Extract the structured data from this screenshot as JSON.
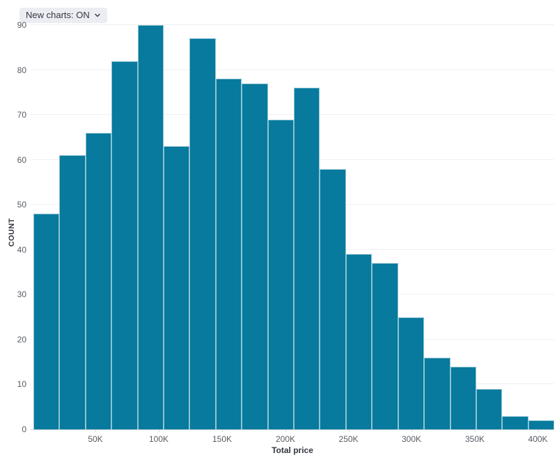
{
  "controls": {
    "new_charts_label": "New charts: ON",
    "chevron_icon": "chevron-down"
  },
  "chart_data": {
    "type": "bar",
    "subtype": "histogram",
    "title": "",
    "xlabel": "Total price",
    "ylabel": "COUNT",
    "bin_start": 0,
    "bin_width": 20000,
    "values": [
      48,
      61,
      66,
      82,
      90,
      63,
      87,
      78,
      77,
      69,
      76,
      58,
      39,
      37,
      25,
      16,
      14,
      9,
      3,
      2
    ],
    "ylim": [
      0,
      90
    ],
    "y_ticks": [
      0,
      10,
      20,
      30,
      40,
      50,
      60,
      70,
      80,
      90
    ],
    "x_ticks": [
      {
        "label": "50K",
        "value": 50000,
        "pos": 0.1237
      },
      {
        "label": "100K",
        "value": 100000,
        "pos": 0.2447
      },
      {
        "label": "150K",
        "value": 150000,
        "pos": 0.3657
      },
      {
        "label": "200K",
        "value": 200000,
        "pos": 0.4867
      },
      {
        "label": "250K",
        "value": 250000,
        "pos": 0.6071
      },
      {
        "label": "300K",
        "value": 300000,
        "pos": 0.7274
      },
      {
        "label": "350K",
        "value": 350000,
        "pos": 0.8484
      },
      {
        "label": "400K",
        "value": 400000,
        "pos": 0.9688
      }
    ],
    "grid": "horizontal",
    "legend": "none",
    "colors": {
      "bar_fill": "#077a9d",
      "bar_stroke": "rgba(255,255,255,0.55)",
      "gridline": "#eef0f3",
      "axis_line": "#d3d7de",
      "tick_text": "#555b63",
      "axis_title_text": "#343741"
    }
  }
}
